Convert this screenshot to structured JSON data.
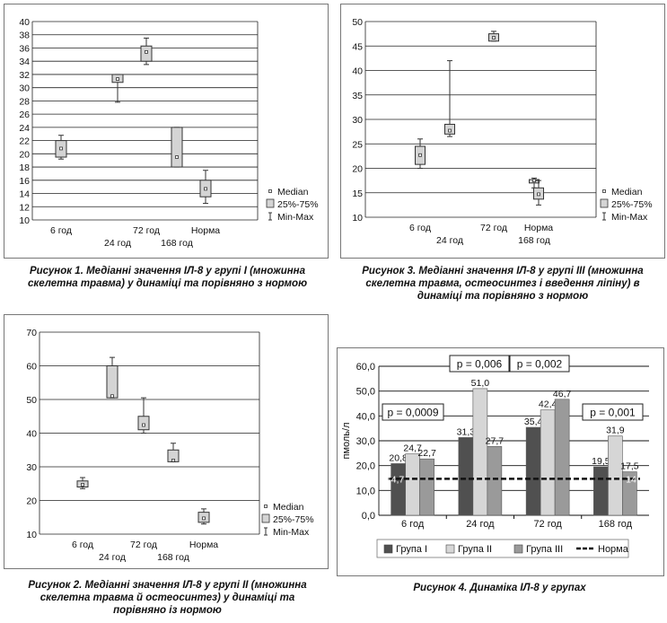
{
  "captions": {
    "fig1": "Рисунок 1. Медіанні значення ІЛ-8 у групі І (множинна скелетна травма) у динаміці та порівняно з нормою",
    "fig3": "Рисунок 3. Медіанні значення ІЛ-8 у групі ІІІ (множинна скелетна травма, остеосинтез і введення ліпіну) в динаміці та порівняно з нормою",
    "fig2": "Рисунок 2. Медіанні значення ІЛ-8 у групі ІІ (множинна скелетна травма й остеосинтез) у динаміці та порівняно із нормою",
    "fig4": "Рисунок 4. Динаміка ІЛ-8 у групах"
  },
  "chart_data": [
    {
      "id": "fig1",
      "type": "boxplot",
      "categories_row1": [
        "6 год",
        "72 год",
        "Норма"
      ],
      "categories_row2": [
        "24 год",
        "168 год"
      ],
      "categories": [
        "6 год",
        "24 год",
        "72 год",
        "168 год",
        "Норма"
      ],
      "ylim": [
        10,
        40
      ],
      "yticks": [
        10,
        12,
        14,
        16,
        18,
        20,
        22,
        24,
        26,
        28,
        30,
        32,
        34,
        36,
        38,
        40
      ],
      "legend": [
        "Median",
        "25%-75%",
        "Min-Max"
      ],
      "boxes": [
        {
          "min": 19.2,
          "q1": 19.5,
          "median": 20.8,
          "q3": 22.0,
          "max": 22.8
        },
        {
          "min": 27.8,
          "q1": 30.8,
          "median": 31.3,
          "q3": 32.0,
          "max": 32.0
        },
        {
          "min": 33.5,
          "q1": 34.0,
          "median": 35.4,
          "q3": 36.3,
          "max": 37.5
        },
        {
          "min": 18.0,
          "q1": 18.0,
          "median": 19.5,
          "q3": 24.0,
          "max": 24.0
        },
        {
          "min": 12.5,
          "q1": 13.5,
          "median": 14.7,
          "q3": 16.0,
          "max": 17.5
        }
      ]
    },
    {
      "id": "fig3",
      "type": "boxplot",
      "categories_row1": [
        "6 год",
        "72 год",
        "Норма"
      ],
      "categories_row2": [
        "24 год",
        "168 год"
      ],
      "categories": [
        "6 год",
        "24 год",
        "72 год",
        "168 год",
        "Норма"
      ],
      "ylim": [
        10,
        50
      ],
      "yticks": [
        10,
        15,
        20,
        25,
        30,
        35,
        40,
        45,
        50
      ],
      "legend": [
        "Median",
        "25%-75%",
        "Min-Max"
      ],
      "boxes": [
        {
          "min": 20.0,
          "q1": 20.8,
          "median": 22.7,
          "q3": 24.5,
          "max": 26.0
        },
        {
          "min": 26.5,
          "q1": 27.0,
          "median": 27.7,
          "q3": 29.0,
          "max": 42.0
        },
        {
          "min": 46.0,
          "q1": 46.0,
          "median": 46.7,
          "q3": 47.5,
          "max": 48.0
        },
        {
          "min": 16.0,
          "q1": 17.0,
          "median": 17.5,
          "q3": 17.7,
          "max": 18.0
        },
        {
          "min": 12.5,
          "q1": 13.7,
          "median": 14.7,
          "q3": 16.0,
          "max": 17.5
        }
      ]
    },
    {
      "id": "fig2",
      "type": "boxplot",
      "categories_row1": [
        "6 год",
        "72 год",
        "Норма"
      ],
      "categories_row2": [
        "24 год",
        "168 год"
      ],
      "categories": [
        "6 год",
        "24 год",
        "72 год",
        "168 год",
        "Норма"
      ],
      "ylim": [
        10,
        70
      ],
      "yticks": [
        10,
        20,
        30,
        40,
        50,
        60,
        70
      ],
      "legend": [
        "Median",
        "25%-75%",
        "Min-Max"
      ],
      "boxes": [
        {
          "min": 23.5,
          "q1": 24.0,
          "median": 24.7,
          "q3": 25.8,
          "max": 26.8
        },
        {
          "min": 50.5,
          "q1": 50.5,
          "median": 51.0,
          "q3": 60.0,
          "max": 62.5
        },
        {
          "min": 40.0,
          "q1": 41.0,
          "median": 42.4,
          "q3": 45.0,
          "max": 50.5
        },
        {
          "min": 31.5,
          "q1": 31.5,
          "median": 31.9,
          "q3": 35.0,
          "max": 37.0
        },
        {
          "min": 13.0,
          "q1": 13.5,
          "median": 14.7,
          "q3": 16.5,
          "max": 17.5
        }
      ]
    },
    {
      "id": "fig4",
      "type": "bar",
      "categories": [
        "6 год",
        "24 год",
        "72 год",
        "168 год"
      ],
      "ylabel": "пмоль/л",
      "ylim": [
        0,
        60
      ],
      "yticks": [
        "0,0",
        "10,0",
        "20,0",
        "30,0",
        "40,0",
        "50,0",
        "60,0"
      ],
      "series": [
        {
          "name": "Група І",
          "color": "#505050",
          "values": [
            20.8,
            31.3,
            35.4,
            19.5
          ],
          "labels": [
            "20,8",
            "31,3",
            "35,4",
            "19,5"
          ]
        },
        {
          "name": "Група ІІ",
          "color": "#d6d6d6",
          "values": [
            24.7,
            51.0,
            42.4,
            31.9
          ],
          "labels": [
            "24,7",
            "51,0",
            "42,4",
            "31,9"
          ]
        },
        {
          "name": "Група ІІІ",
          "color": "#9a9a9a",
          "values": [
            22.7,
            27.7,
            46.7,
            17.5
          ],
          "labels": [
            "22,7",
            "27,7",
            "46,7",
            "17,5"
          ]
        }
      ],
      "norm": {
        "name": "Норма",
        "value": 14.7,
        "label": "14,7"
      },
      "annotations": [
        "p = 0,006",
        "p = 0,002",
        "p = 0,0009",
        "p = 0,001"
      ]
    }
  ]
}
